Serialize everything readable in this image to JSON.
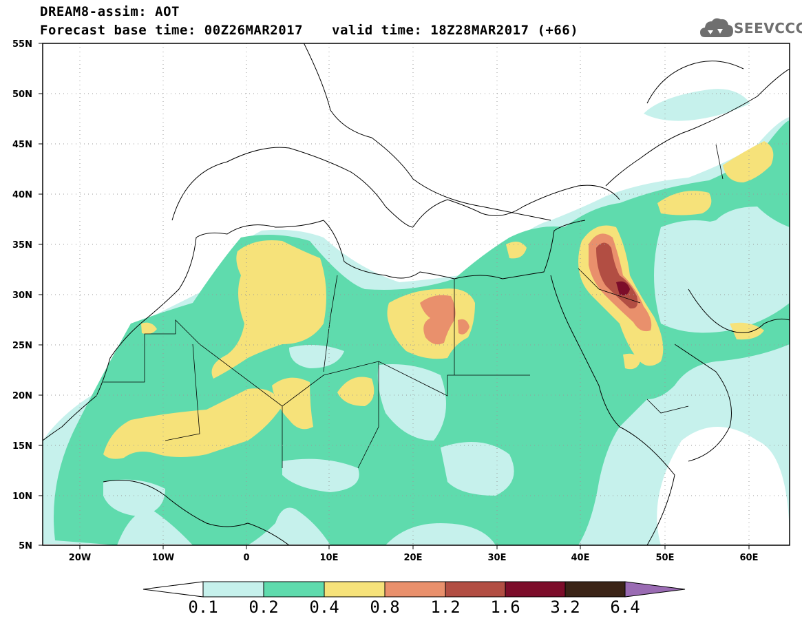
{
  "header": {
    "line1": "DREAM8-assim: AOT",
    "line2": "Forecast base time: 00Z26MAR2017",
    "valid_time": "valid time: 18Z28MAR2017 (+66)"
  },
  "logo": {
    "text": "SEEVCCC",
    "icon": "cloud-icon"
  },
  "map": {
    "lat_labels": [
      "55N",
      "50N",
      "45N",
      "40N",
      "35N",
      "30N",
      "25N",
      "20N",
      "15N",
      "10N",
      "5N"
    ],
    "lon_labels": [
      "20W",
      "10W",
      "0",
      "10E",
      "20E",
      "30E",
      "40E",
      "50E",
      "60E"
    ],
    "lat_range": [
      5,
      55
    ],
    "lon_range": [
      -25,
      65
    ],
    "grid": "dotted"
  },
  "colorbar": {
    "levels": [
      "0.1",
      "0.2",
      "0.4",
      "0.8",
      "1.2",
      "1.6",
      "3.2",
      "6.4"
    ],
    "colors": {
      "under": "#ffffff",
      "c1": "#c6f1ec",
      "c2": "#5fdbad",
      "c3": "#f6e27a",
      "c4": "#e9906c",
      "c5": "#b24e43",
      "c6": "#7c0d2a",
      "c7": "#3b2417",
      "over": "#9a6bb3"
    }
  }
}
